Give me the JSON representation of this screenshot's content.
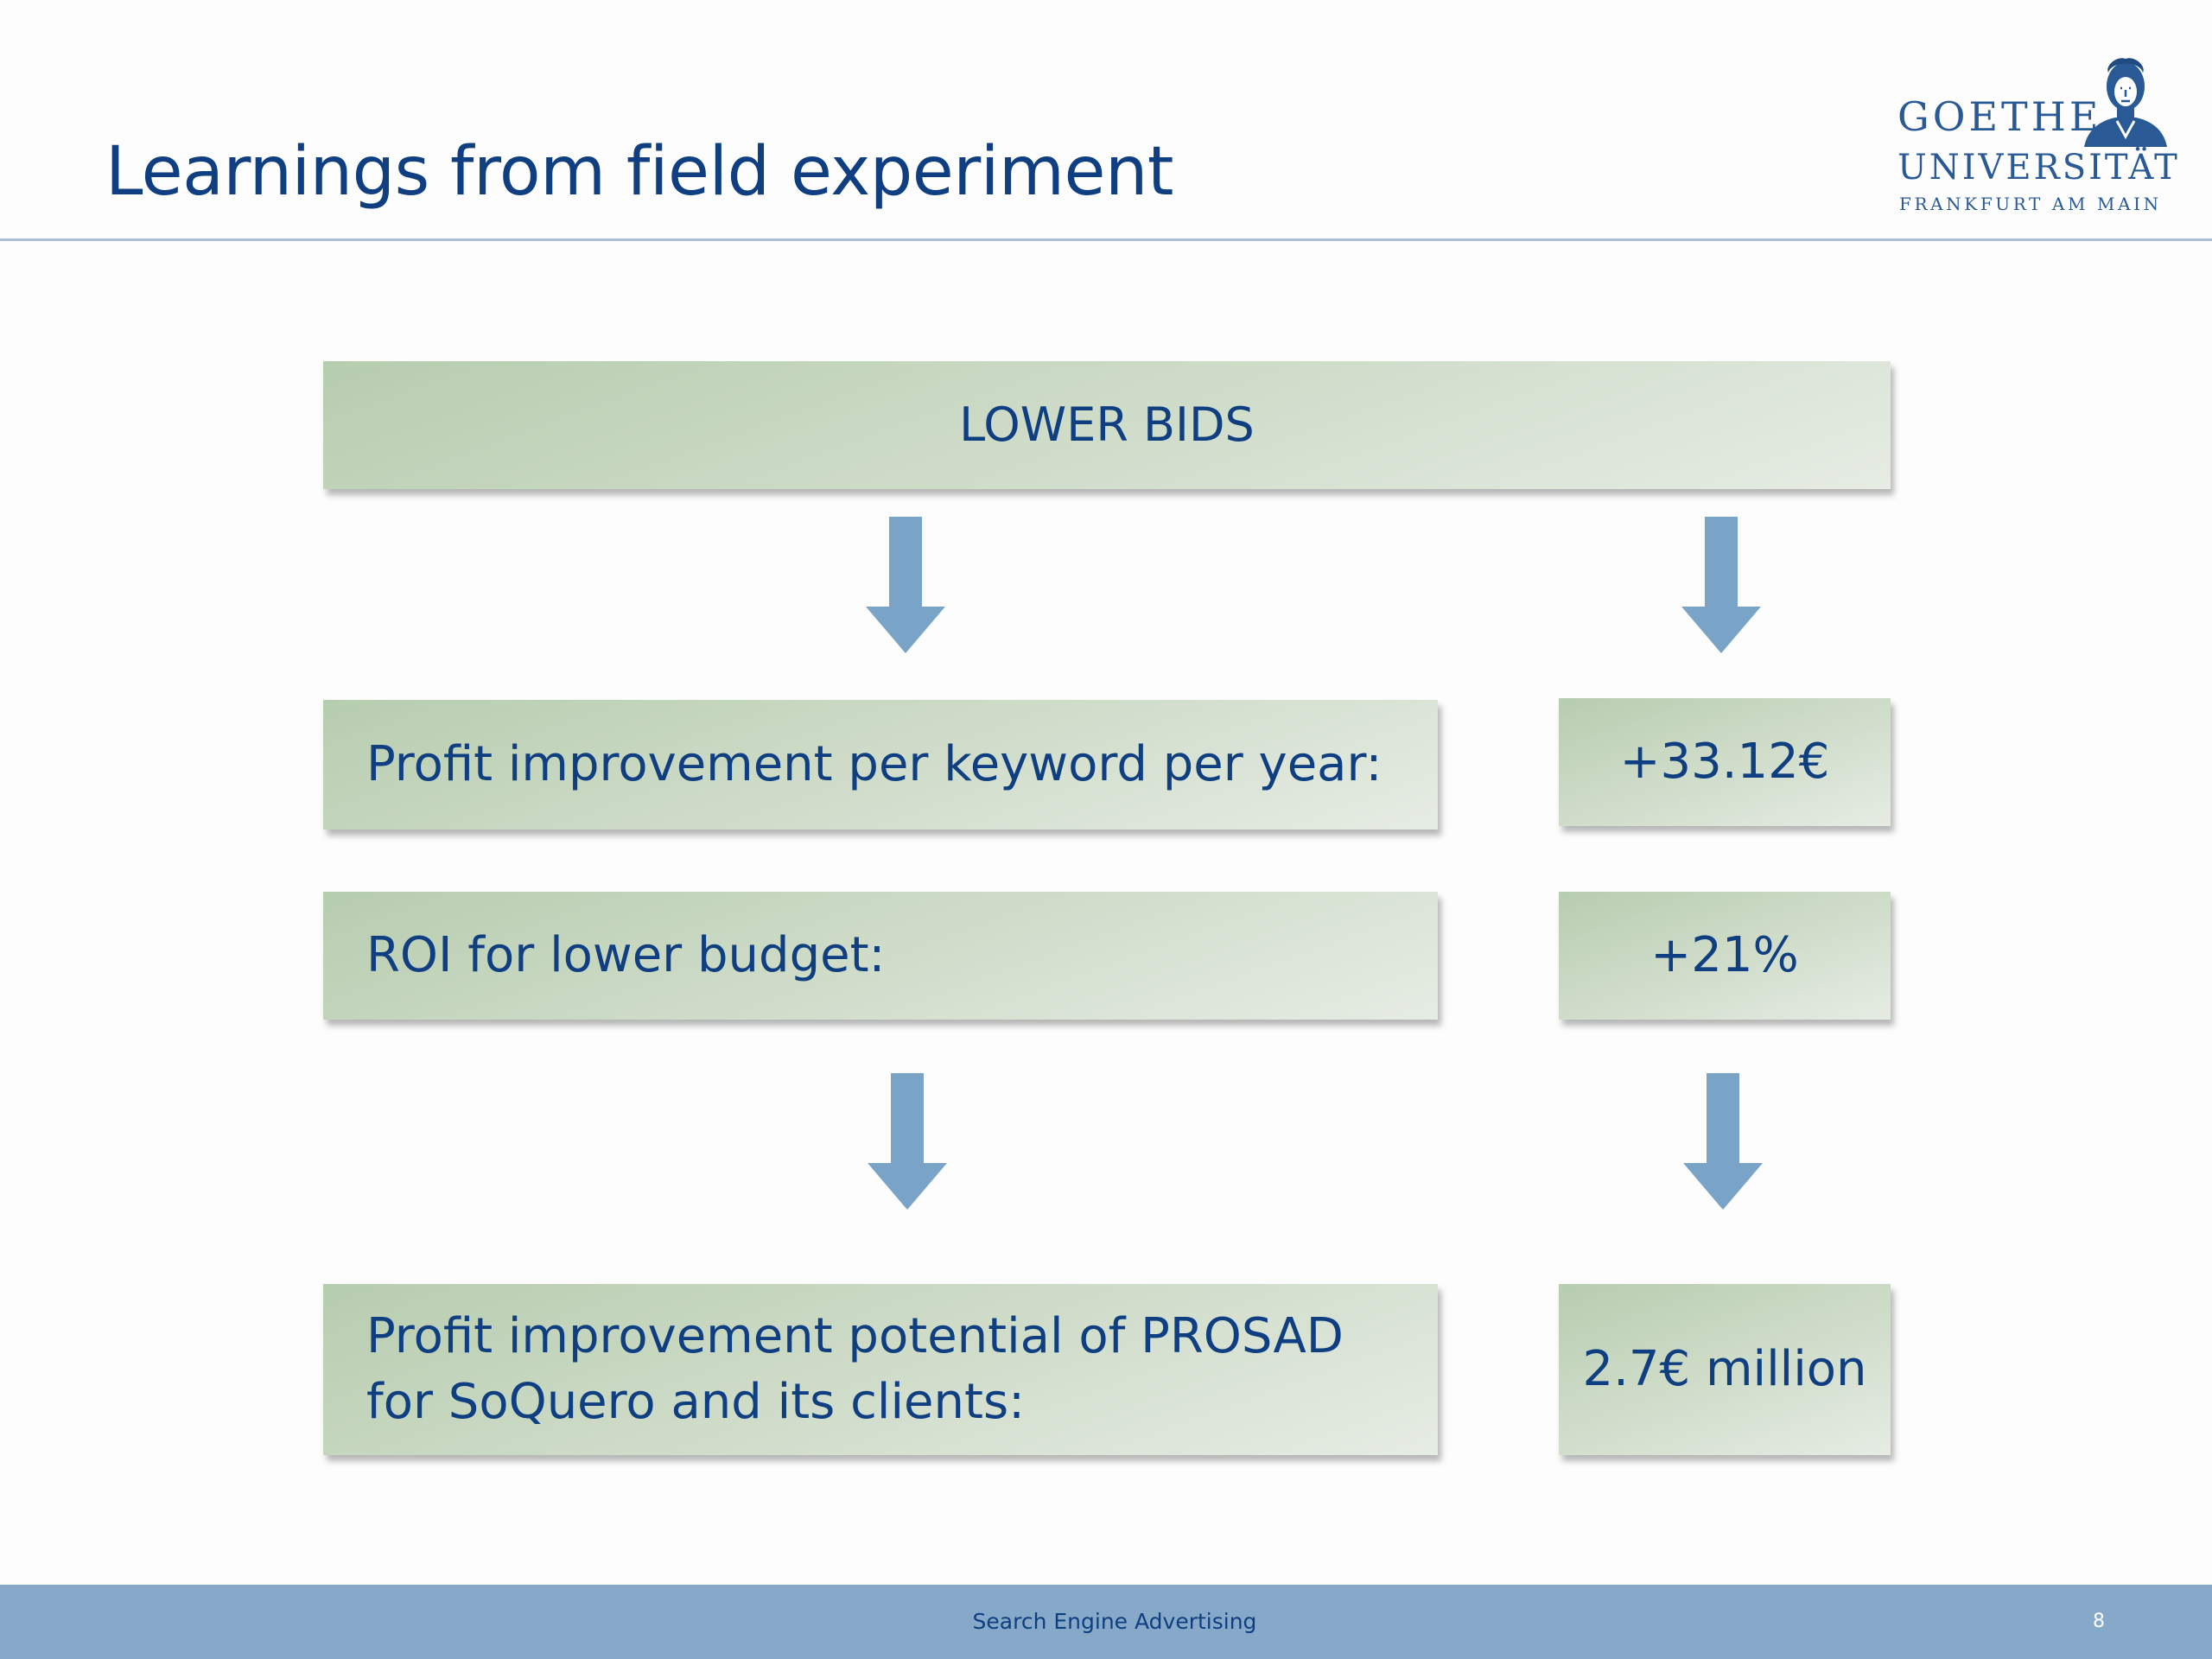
{
  "slide": {
    "title": "Learnings from field experiment"
  },
  "logo": {
    "name_line1": "GOETHE",
    "name_line2": "UNIVERSITÄT",
    "name_line3": "FRANKFURT AM MAIN"
  },
  "diagram": {
    "top_box": "LOWER BIDS",
    "rows": [
      {
        "label": "Profit improvement per keyword per year:",
        "value": "+33.12€"
      },
      {
        "label": "ROI for lower budget:",
        "value": "+21%"
      }
    ],
    "result": {
      "label": "Profit improvement potential of PROSAD for SoQuero and its clients:",
      "value": "2.7€ million"
    }
  },
  "footer": {
    "text": "Search Engine Advertising",
    "page_number": "8"
  },
  "colors": {
    "title_text": "#0f3f80",
    "box_fill": "#cfdcc9",
    "arrow": "#7aa3c8",
    "footer_bar": "#86a9c9"
  }
}
